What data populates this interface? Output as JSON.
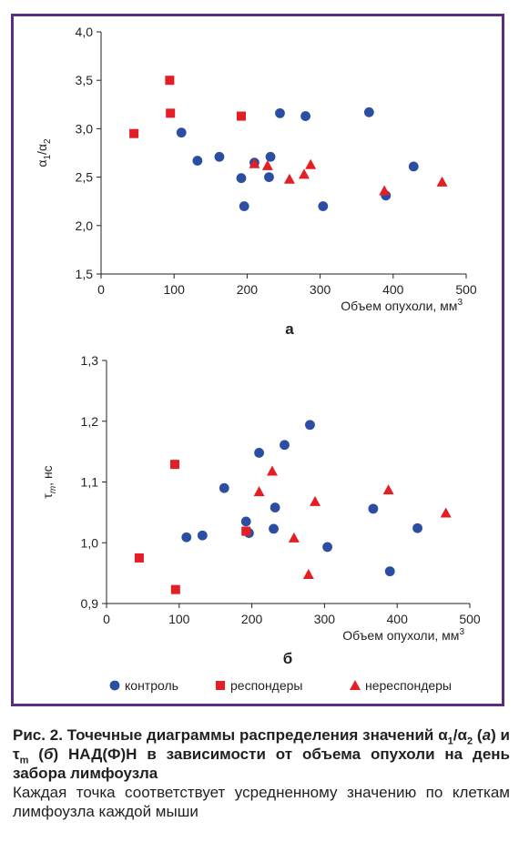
{
  "chart_data": [
    {
      "type": "scatter",
      "panel_label": "а",
      "xlabel": "Объем опухоли, мм",
      "xlabel_sup": "3",
      "ylabel_main": "α",
      "ylabel_sub1": "1",
      "ylabel_slash": "/α",
      "ylabel_sub2": "2",
      "xlim": [
        0,
        500
      ],
      "ylim": [
        1.5,
        4.0
      ],
      "xticks": [
        "0",
        "100",
        "200",
        "300",
        "400",
        "500"
      ],
      "yticks": [
        "1,5",
        "2,0",
        "2,5",
        "3,0",
        "3,5",
        "4,0"
      ],
      "series": [
        {
          "name": "контроль",
          "x": [
            110,
            132,
            162,
            192,
            196,
            210,
            230,
            232,
            245,
            280,
            304,
            367,
            390,
            428
          ],
          "y": [
            2.96,
            2.67,
            2.71,
            2.49,
            2.2,
            2.65,
            2.5,
            2.71,
            3.16,
            3.13,
            2.2,
            3.17,
            2.31,
            2.61
          ]
        },
        {
          "name": "респондеры",
          "x": [
            45,
            94,
            95,
            192
          ],
          "y": [
            2.95,
            3.5,
            3.16,
            3.13
          ]
        },
        {
          "name": "нереспондеры",
          "x": [
            210,
            228,
            258,
            278,
            287,
            388,
            467
          ],
          "y": [
            2.64,
            2.62,
            2.48,
            2.53,
            2.63,
            2.36,
            2.45
          ]
        }
      ]
    },
    {
      "type": "scatter",
      "panel_label": "б",
      "xlabel": "Объем опухоли, мм",
      "xlabel_sup": "3",
      "ylabel_main": "τ",
      "ylabel_sub1": "m",
      "ylabel_rest": ", нс",
      "xlim": [
        0,
        500
      ],
      "ylim": [
        0.9,
        1.3
      ],
      "xticks": [
        "0",
        "100",
        "200",
        "300",
        "400",
        "500"
      ],
      "yticks": [
        "0,9",
        "1,0",
        "1,1",
        "1,2",
        "1,3"
      ],
      "series": [
        {
          "name": "контроль",
          "x": [
            110,
            132,
            162,
            192,
            196,
            210,
            230,
            232,
            245,
            280,
            304,
            367,
            390,
            428
          ],
          "y": [
            1.009,
            1.012,
            1.09,
            1.035,
            1.016,
            1.148,
            1.023,
            1.058,
            1.161,
            1.194,
            0.993,
            1.056,
            0.953,
            1.024
          ]
        },
        {
          "name": "респондеры",
          "x": [
            45,
            94,
            95,
            192
          ],
          "y": [
            0.975,
            1.129,
            0.923,
            1.019
          ]
        },
        {
          "name": "нереспондеры",
          "x": [
            210,
            228,
            258,
            278,
            287,
            388,
            467
          ],
          "y": [
            1.084,
            1.118,
            1.008,
            0.948,
            1.068,
            1.087,
            1.049
          ]
        }
      ]
    }
  ],
  "legend": [
    {
      "label": "контроль",
      "marker": "circle"
    },
    {
      "label": "респондеры",
      "marker": "square"
    },
    {
      "label": "нереспондеры",
      "marker": "triangle"
    }
  ],
  "colors": {
    "control": "#2b4ea2",
    "responders": "#e31e24",
    "nonresponders": "#e31e24",
    "frame": "#5b2d82",
    "axis": "#231f20"
  },
  "caption": {
    "bold_pre": "Рис. 2. Точечные диаграммы распределения значений α",
    "bold_sub1": "1",
    "bold_mid1": "/α",
    "bold_sub2": "2",
    "bold_mid2": " (",
    "bold_it_a": "а",
    "bold_mid3": ") и τ",
    "bold_sub_m": "m",
    "bold_mid4": " (",
    "bold_it_b": "б",
    "bold_post": ") НАД(Ф)Н в зависимости от объема опухоли на день забора лимфоузла",
    "text": "Каждая точка соответствует усредненному значению по клеткам лимфоузла каждой мыши"
  }
}
